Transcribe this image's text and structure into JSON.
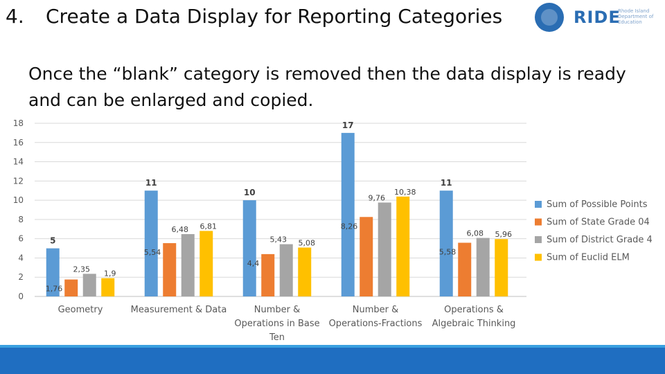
{
  "slide": {
    "number": "4.",
    "title": "Create a Data Display for Reporting Categories",
    "subtitle": "Once the “blank” category is removed then the data display is ready and can be enlarged and copied."
  },
  "logo": {
    "name": "RIDE",
    "subtext": "Rhode Island Department of Education",
    "color": "#2a6db3"
  },
  "chart_data": {
    "type": "bar",
    "categories": [
      [
        "Geometry"
      ],
      [
        "Measurement & Data"
      ],
      [
        "Number &",
        "Operations in Base",
        "Ten"
      ],
      [
        "Number &",
        "Operations-Fractions"
      ],
      [
        "Operations &",
        "Algebraic Thinking"
      ]
    ],
    "series": [
      {
        "name": "Sum of Possible Points",
        "color": "#5b9bd5",
        "values": [
          5,
          11,
          10,
          17,
          11
        ],
        "labels": [
          "5",
          "11",
          "10",
          "17",
          "11"
        ]
      },
      {
        "name": "Sum of State Grade 04",
        "color": "#ed7d31",
        "values": [
          1.76,
          5.54,
          4.4,
          8.26,
          5.58
        ],
        "labels": [
          "1,76",
          "5,54",
          "4,4",
          "8,26",
          "5,58"
        ]
      },
      {
        "name": "Sum of District Grade 4",
        "color": "#a5a5a5",
        "values": [
          2.35,
          6.48,
          5.43,
          9.76,
          6.08
        ],
        "labels": [
          "2,35",
          "6,48",
          "5,43",
          "9,76",
          "6,08"
        ]
      },
      {
        "name": "Sum of Euclid ELM",
        "color": "#ffc000",
        "values": [
          1.9,
          6.81,
          5.08,
          10.38,
          5.96
        ],
        "labels": [
          "1,9",
          "6,81",
          "5,08",
          "10,38",
          "5,96"
        ]
      }
    ],
    "ylim": [
      0,
      18
    ],
    "yticks": [
      "0",
      "2",
      "4",
      "6",
      "8",
      "10",
      "12",
      "14",
      "16",
      "18"
    ],
    "grid": true,
    "legend": "right"
  }
}
